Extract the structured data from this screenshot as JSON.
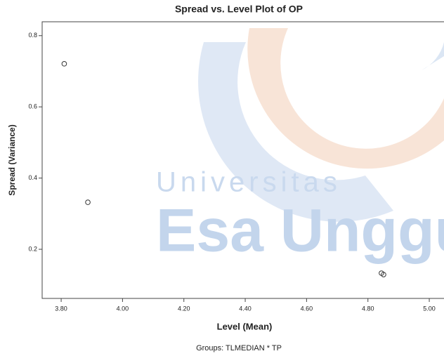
{
  "chart_data": {
    "type": "scatter",
    "title": "Spread vs. Level Plot of OP",
    "x_label": "Level (Mean)",
    "y_label": "Spread (Variance)",
    "footnote": "Groups: TLMEDIAN * TP",
    "watermark": [
      "Universitas",
      "Esa Unggul"
    ],
    "x": [
      3.81,
      3.887,
      4.844,
      4.851
    ],
    "values": [
      0.721,
      0.332,
      0.133,
      0.129
    ],
    "color": "#333333",
    "xlim": [
      3.738,
      5.048
    ],
    "ylim": [
      0.062,
      0.839
    ],
    "xticks": [
      {
        "value": 3.8,
        "label": "3.80"
      },
      {
        "value": 4.0,
        "label": "4.00"
      },
      {
        "value": 4.2,
        "label": "4.20"
      },
      {
        "value": 4.4,
        "label": "4.40"
      },
      {
        "value": 4.6,
        "label": "4.60"
      },
      {
        "value": 4.8,
        "label": "4.80"
      },
      {
        "value": 5.0,
        "label": "5.00"
      }
    ],
    "yticks": [
      0.2,
      0.4,
      0.6,
      0.8
    ],
    "grid": false
  }
}
